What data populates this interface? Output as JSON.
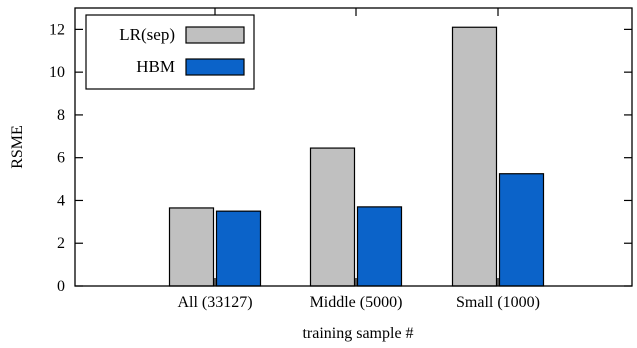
{
  "chart_data": {
    "type": "bar",
    "categories": [
      "All (33127)",
      "Middle (5000)",
      "Small (1000)"
    ],
    "series": [
      {
        "name": "LR(sep)",
        "values": [
          3.65,
          6.45,
          12.1
        ],
        "color": "#c0c0c0"
      },
      {
        "name": "HBM",
        "values": [
          3.5,
          3.7,
          5.25
        ],
        "color": "#0b63c9"
      }
    ],
    "title": "",
    "xlabel": "training sample #",
    "ylabel": "RSME",
    "ylim": [
      0,
      13
    ],
    "yticks": [
      0,
      2,
      4,
      6,
      8,
      10,
      12
    ],
    "grid": false,
    "legend_position": "top-left"
  }
}
